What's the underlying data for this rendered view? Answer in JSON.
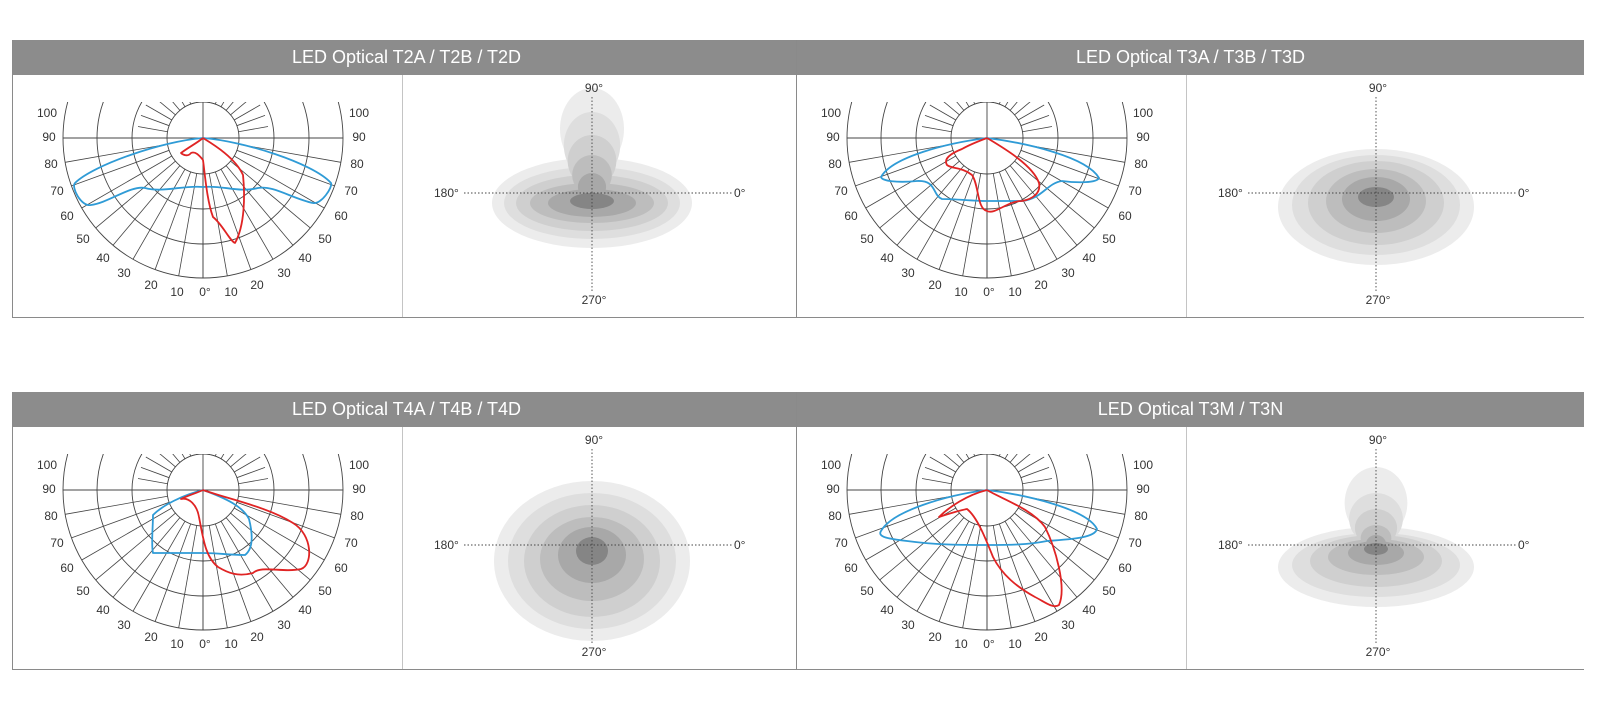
{
  "colors": {
    "header_bg": "#8c8c8c",
    "header_text": "#ffffff",
    "grid": "#444444",
    "red_curve": "#e02424",
    "blue_curve": "#2f9bd6",
    "iso_fill_light": "#eeeeee",
    "iso_fill_dark": "#7a7a7a"
  },
  "polar_labels": {
    "radial_side": [
      "100",
      "90",
      "80",
      "70",
      "60",
      "50",
      "40",
      "30",
      "20",
      "10"
    ],
    "center": "0°"
  },
  "iso_labels": {
    "top": "90°",
    "bottom": "270°",
    "left": "180°",
    "right": "0°"
  },
  "panels": [
    {
      "id": "t2",
      "title": "LED Optical T2A / T2B / T2D",
      "polar_diagram": "polar-diagram",
      "isolux_diagram": "isolux-diagram"
    },
    {
      "id": "t3",
      "title": "LED Optical T3A / T3B / T3D",
      "polar_diagram": "polar-diagram",
      "isolux_diagram": "isolux-diagram"
    },
    {
      "id": "t4",
      "title": "LED Optical T4A / T4B / T4D",
      "polar_diagram": "polar-diagram",
      "isolux_diagram": "isolux-diagram"
    },
    {
      "id": "t3m",
      "title": "LED Optical T3M / T3N",
      "polar_diagram": "polar-diagram",
      "isolux_diagram": "isolux-diagram"
    }
  ]
}
